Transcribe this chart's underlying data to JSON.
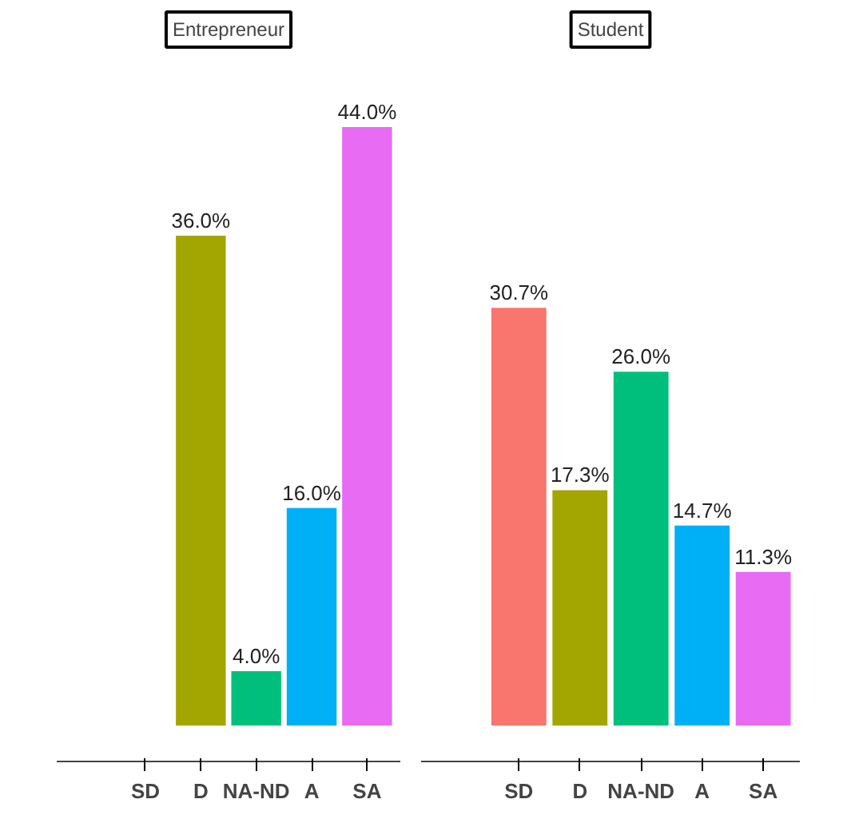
{
  "chart_data": [
    {
      "type": "bar",
      "title": "Entrepreneur",
      "categories": [
        "SD",
        "D",
        "NA-ND",
        "A",
        "SA"
      ],
      "values": [
        null,
        36.0,
        4.0,
        16.0,
        44.0
      ],
      "colors": [
        "#f8766d",
        "#a3a500",
        "#00bf7d",
        "#00b0f6",
        "#e76bf3"
      ],
      "value_labels": [
        null,
        "36.0%",
        "4.0%",
        "16.0%",
        "44.0%"
      ],
      "grid": false,
      "legend": false
    },
    {
      "type": "bar",
      "title": "Student",
      "categories": [
        "SD",
        "D",
        "NA-ND",
        "A",
        "SA"
      ],
      "values": [
        30.7,
        17.3,
        26.0,
        14.7,
        11.3
      ],
      "colors": [
        "#f8766d",
        "#a3a500",
        "#00bf7d",
        "#00b0f6",
        "#e76bf3"
      ],
      "value_labels": [
        "30.7%",
        "17.3%",
        "26.0%",
        "14.7%",
        "11.3%"
      ],
      "grid": false,
      "legend": false
    }
  ]
}
